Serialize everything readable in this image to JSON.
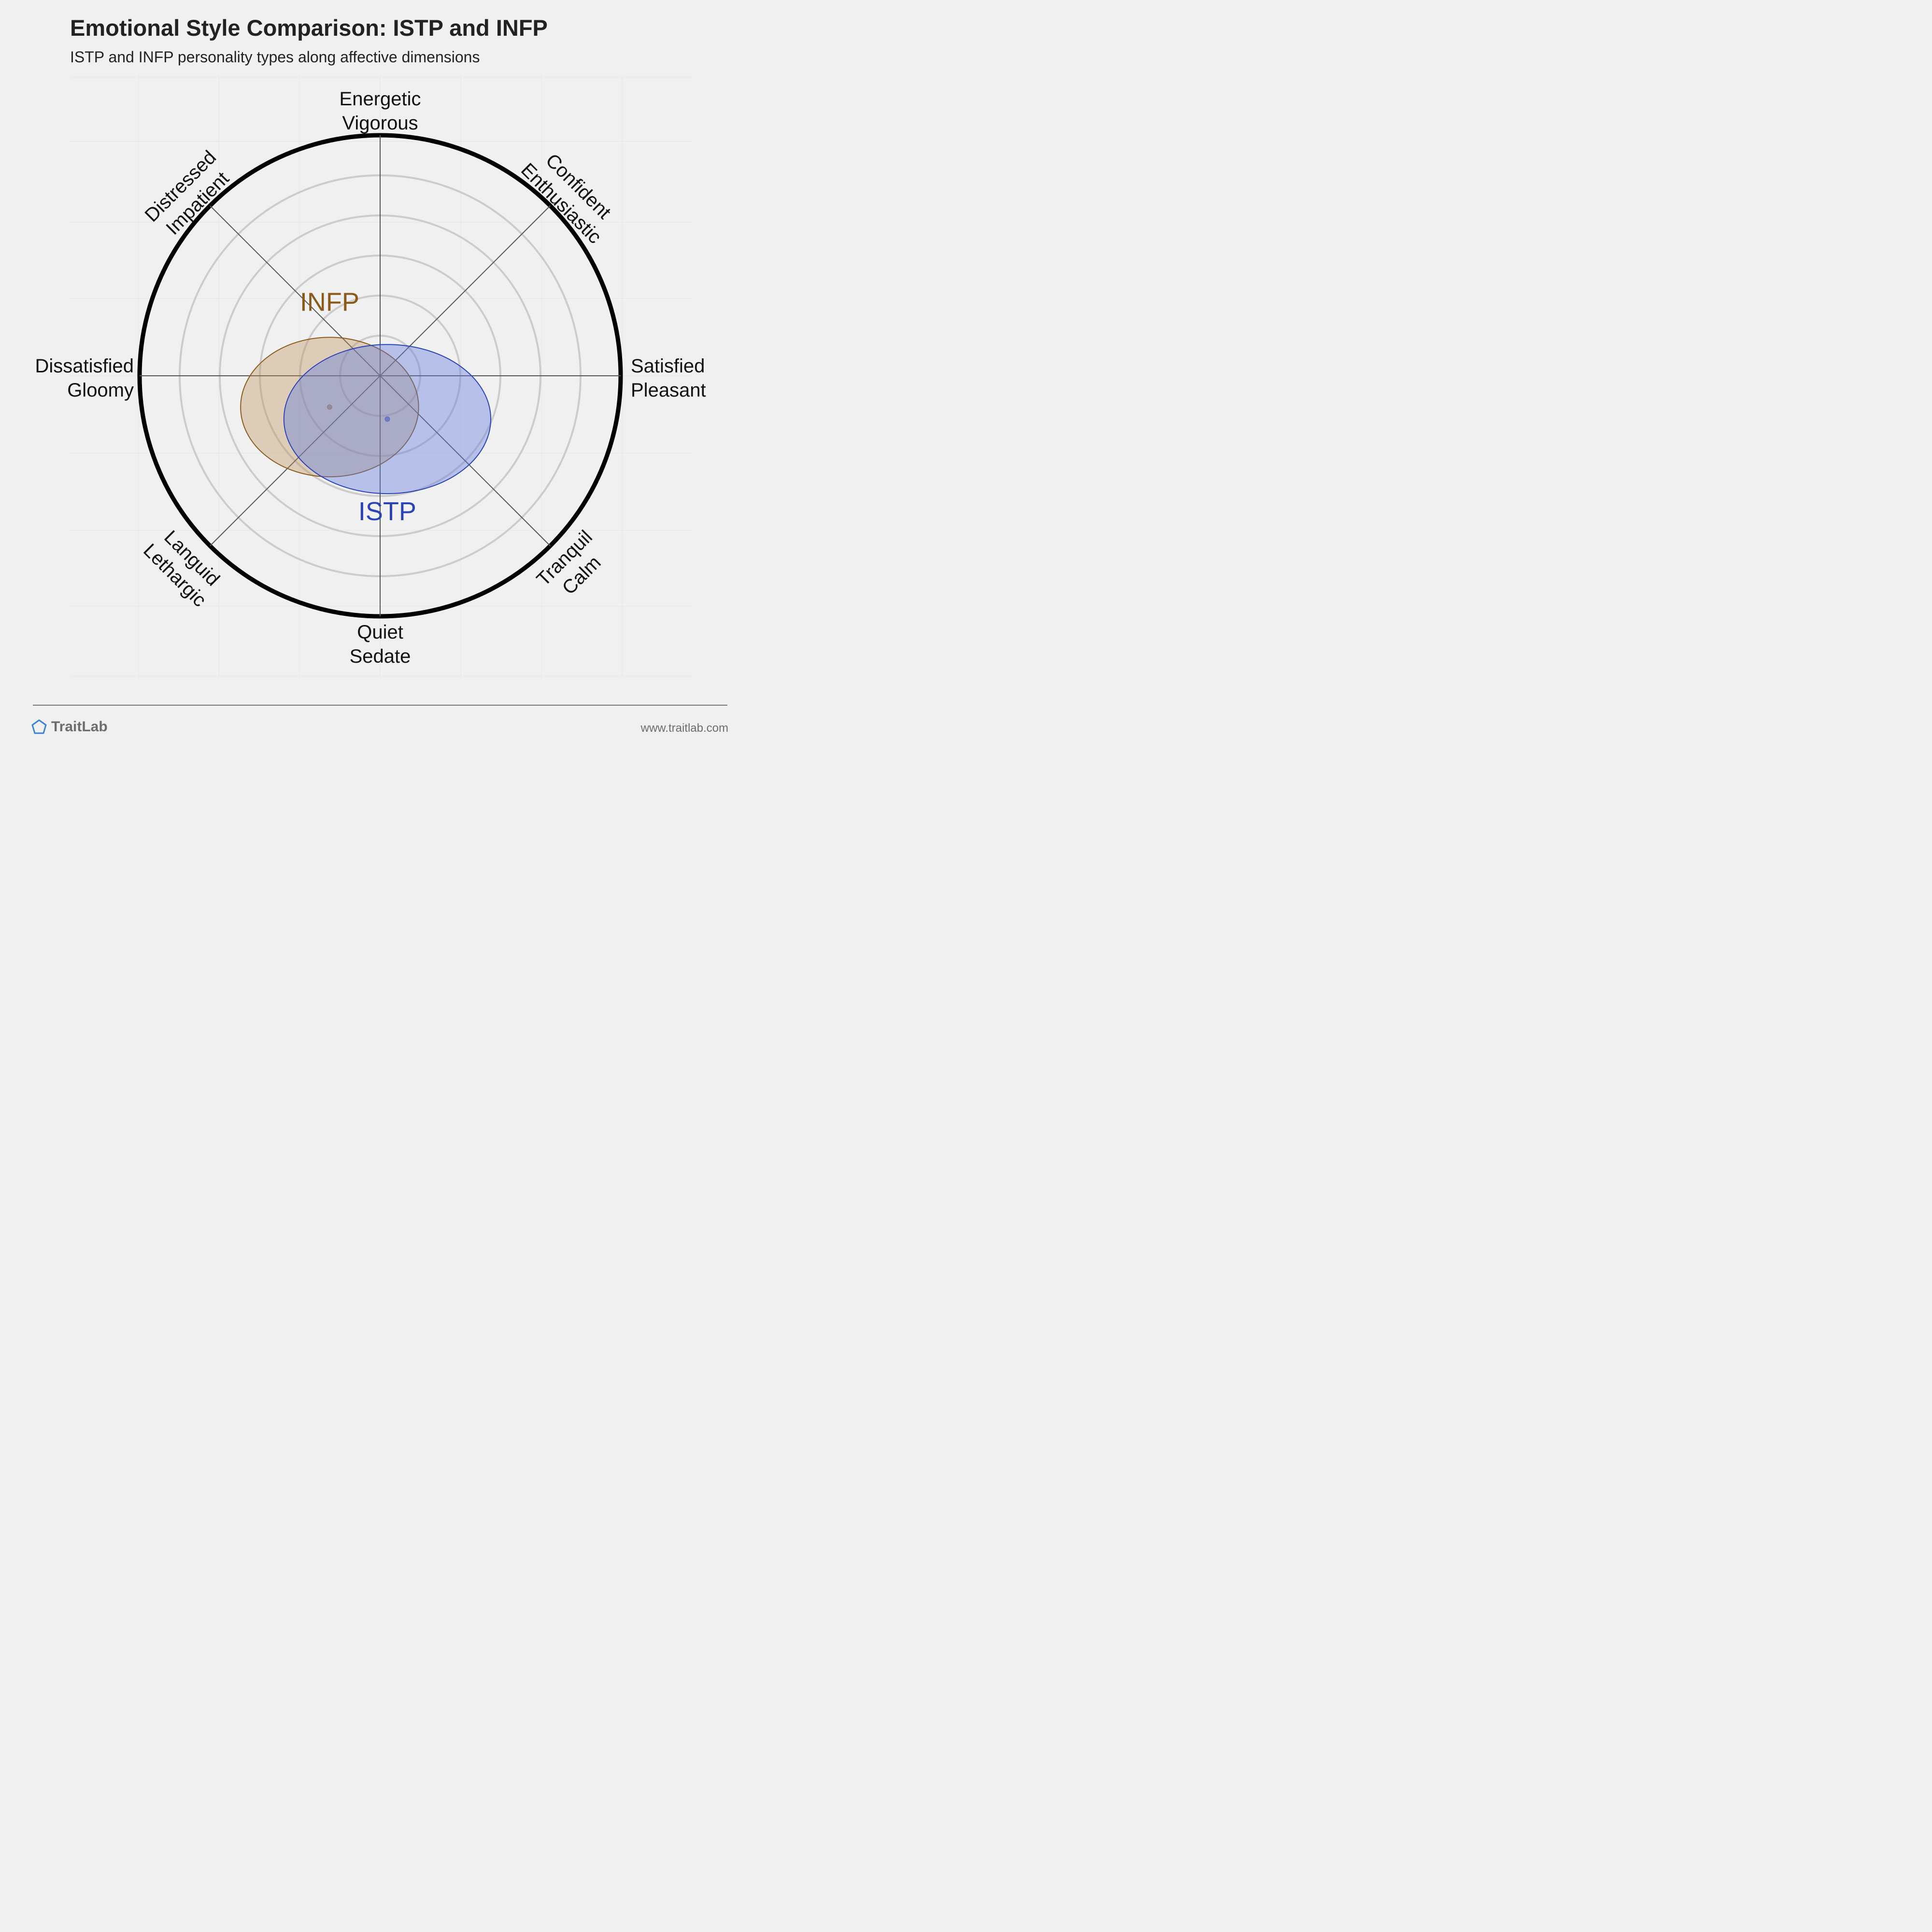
{
  "header": {
    "title": "Emotional Style Comparison: ISTP and INFP",
    "subtitle": "ISTP and INFP personality types along affective dimensions"
  },
  "footer": {
    "brand": "TraitLab",
    "brand_icon": "pentagon-icon",
    "url": "www.traitlab.com"
  },
  "colors": {
    "background": "#f0f0f0",
    "ring": "#cccccc",
    "outer_ring": "#000000",
    "axis": "#555555",
    "INFP": "#8b5a1b",
    "ISTP": "#2a44b8",
    "brand_icon": "#3b82d6"
  },
  "chart_data": {
    "type": "scatter",
    "axes": [
      {
        "label": "Energetic\nVigorous",
        "angle_deg": 90
      },
      {
        "label": "Confident\nEnthusiastic",
        "angle_deg": 45
      },
      {
        "label": "Satisfied\nPleasant",
        "angle_deg": 0
      },
      {
        "label": "Tranquil\nCalm",
        "angle_deg": -45
      },
      {
        "label": "Quiet\nSedate",
        "angle_deg": -90
      },
      {
        "label": "Languid\nLethargic",
        "angle_deg": -135
      },
      {
        "label": "Dissatisfied\nGloomy",
        "angle_deg": 180
      },
      {
        "label": "Distressed\nImpatient",
        "angle_deg": 135
      }
    ],
    "xlim": [
      -1,
      1
    ],
    "ylim": [
      -1,
      1
    ],
    "rings": 6,
    "grid": true,
    "series": [
      {
        "name": "INFP",
        "center": [
          -0.21,
          -0.13
        ],
        "spread": [
          0.37,
          0.29
        ],
        "color": "#8b5a1b",
        "fill": "rgba(186,140,80,0.35)"
      },
      {
        "name": "ISTP",
        "center": [
          0.03,
          -0.18
        ],
        "spread": [
          0.43,
          0.31
        ],
        "color": "#2a44b8",
        "fill": "rgba(96,120,220,0.4)"
      }
    ]
  }
}
